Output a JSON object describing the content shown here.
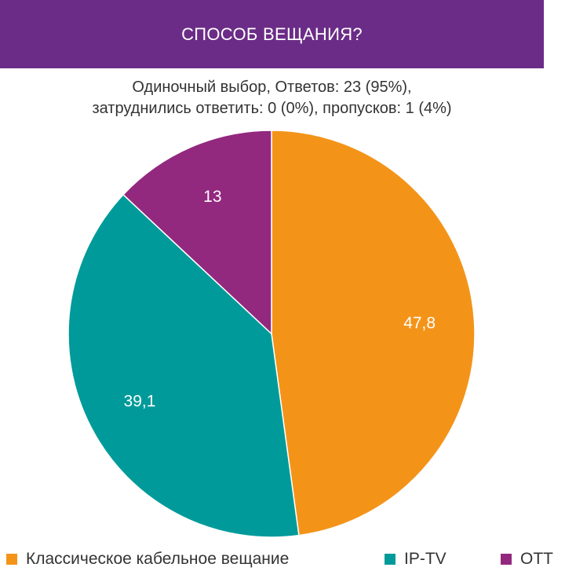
{
  "header": {
    "title": "СПОСОБ ВЕЩАНИЯ?"
  },
  "subtitle": {
    "line1": "Одиночный выбор, Ответов: 23 (95%),",
    "line2": "затруднились ответить: 0 (0%), пропусков: 1 (4%)"
  },
  "colors": {
    "header_bg": "#6b2c87",
    "orange": "#f39419",
    "teal": "#009a9a",
    "purple": "#93287f"
  },
  "chart_data": {
    "type": "pie",
    "title": "СПОСОБ ВЕЩАНИЯ?",
    "categories": [
      "Классическое кабельное вещание",
      "IP-TV",
      "OTT"
    ],
    "values": [
      47.8,
      39.1,
      13
    ],
    "labels": [
      "47,8",
      "39,1",
      "13"
    ],
    "colors": [
      "#f39419",
      "#009a9a",
      "#93287f"
    ],
    "start": "12 o'clock",
    "direction": "clockwise",
    "legend_position": "bottom"
  },
  "legend": {
    "items": [
      {
        "label": "Классическое кабельное вещание",
        "color": "#f39419"
      },
      {
        "label": "IP-TV",
        "color": "#009a9a"
      },
      {
        "label": "OTT",
        "color": "#93287f"
      }
    ]
  }
}
